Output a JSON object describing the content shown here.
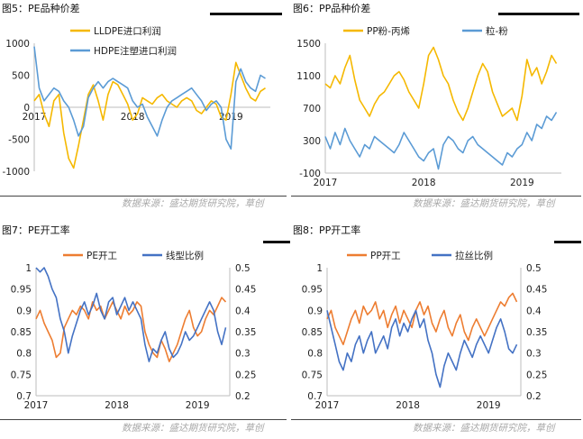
{
  "source_text": "数据来源：盛达期货研究院，草创",
  "colors": {
    "orange": "#f5b800",
    "blue": "#5b9bd5",
    "orange2": "#ed7d31",
    "blue2": "#4472c4",
    "axis": "#bdbdbd"
  },
  "chart_data": [
    {
      "id": "fig5",
      "caption": "图5：PE品种价差",
      "type": "line",
      "x_ticks": [
        "2017",
        "2018",
        "2019"
      ],
      "y_left": {
        "min": -1000,
        "max": 1000,
        "ticks": [
          "1000",
          "500",
          "0",
          "-500",
          "-1000"
        ]
      },
      "series": [
        {
          "name": "LLDPE进口利润",
          "color": "#f5b800",
          "x": [
            2017.0,
            2017.05,
            2017.1,
            2017.15,
            2017.2,
            2017.25,
            2017.3,
            2017.35,
            2017.4,
            2017.45,
            2017.5,
            2017.55,
            2017.6,
            2017.65,
            2017.7,
            2017.75,
            2017.8,
            2017.85,
            2017.9,
            2017.95,
            2018.0,
            2018.05,
            2018.1,
            2018.15,
            2018.2,
            2018.25,
            2018.3,
            2018.35,
            2018.4,
            2018.45,
            2018.5,
            2018.55,
            2018.6,
            2018.65,
            2018.7,
            2018.75,
            2018.8,
            2018.85,
            2018.9,
            2018.95,
            2019.0,
            2019.05,
            2019.1,
            2019.15,
            2019.2,
            2019.25,
            2019.3,
            2019.35
          ],
          "values": [
            100,
            200,
            -100,
            -300,
            100,
            200,
            -400,
            -800,
            -950,
            -600,
            -200,
            200,
            350,
            100,
            -200,
            200,
            400,
            350,
            200,
            50,
            -200,
            -100,
            150,
            100,
            50,
            150,
            200,
            100,
            50,
            0,
            100,
            150,
            100,
            -50,
            -100,
            0,
            100,
            50,
            -150,
            -200,
            200,
            700,
            500,
            300,
            150,
            100,
            250,
            300
          ]
        },
        {
          "name": "HDPE注塑进口利润",
          "color": "#5b9bd5",
          "x": [
            2017.0,
            2017.05,
            2017.1,
            2017.15,
            2017.2,
            2017.25,
            2017.3,
            2017.35,
            2017.4,
            2017.45,
            2017.5,
            2017.55,
            2017.6,
            2017.65,
            2017.7,
            2017.75,
            2017.8,
            2017.85,
            2017.9,
            2017.95,
            2018.0,
            2018.05,
            2018.1,
            2018.15,
            2018.2,
            2018.25,
            2018.3,
            2018.35,
            2018.4,
            2018.45,
            2018.5,
            2018.55,
            2018.6,
            2018.65,
            2018.7,
            2018.75,
            2018.8,
            2018.85,
            2018.9,
            2018.95,
            2019.0,
            2019.05,
            2019.1,
            2019.15,
            2019.2,
            2019.25,
            2019.3,
            2019.35
          ],
          "values": [
            950,
            300,
            100,
            200,
            300,
            250,
            100,
            0,
            -200,
            -450,
            -300,
            150,
            300,
            400,
            300,
            400,
            450,
            400,
            350,
            300,
            100,
            0,
            50,
            -150,
            -300,
            -450,
            -200,
            0,
            100,
            150,
            200,
            250,
            300,
            200,
            100,
            -50,
            50,
            100,
            0,
            -500,
            -650,
            400,
            600,
            400,
            300,
            250,
            500,
            450
          ]
        }
      ]
    },
    {
      "id": "fig6",
      "caption": "图6：PP品种价差",
      "type": "line",
      "x_ticks": [
        "2017",
        "2018",
        "2019"
      ],
      "y_left": {
        "min": -100,
        "max": 1500,
        "ticks": [
          "1500",
          "1100",
          "700",
          "300",
          "-100"
        ]
      },
      "series": [
        {
          "name": "PP粉-丙烯",
          "color": "#f5b800",
          "x": [
            2017.0,
            2017.05,
            2017.1,
            2017.15,
            2017.2,
            2017.25,
            2017.3,
            2017.35,
            2017.4,
            2017.45,
            2017.5,
            2017.55,
            2017.6,
            2017.65,
            2017.7,
            2017.75,
            2017.8,
            2017.85,
            2017.9,
            2017.95,
            2018.0,
            2018.05,
            2018.1,
            2018.15,
            2018.2,
            2018.25,
            2018.3,
            2018.35,
            2018.4,
            2018.45,
            2018.5,
            2018.55,
            2018.6,
            2018.65,
            2018.7,
            2018.75,
            2018.8,
            2018.85,
            2018.9,
            2018.95,
            2019.0,
            2019.05,
            2019.1,
            2019.15,
            2019.2,
            2019.25,
            2019.3,
            2019.35
          ],
          "values": [
            1000,
            950,
            1100,
            1000,
            1200,
            1350,
            1050,
            800,
            700,
            600,
            750,
            850,
            900,
            1000,
            1100,
            1150,
            1050,
            900,
            800,
            700,
            1000,
            1350,
            1450,
            1300,
            1100,
            1000,
            800,
            650,
            550,
            700,
            900,
            1100,
            1250,
            1150,
            900,
            750,
            600,
            650,
            700,
            550,
            850,
            1300,
            1100,
            1200,
            1000,
            1150,
            1350,
            1250
          ]
        },
        {
          "name": "粒-粉",
          "color": "#5b9bd5",
          "x": [
            2017.0,
            2017.05,
            2017.1,
            2017.15,
            2017.2,
            2017.25,
            2017.3,
            2017.35,
            2017.4,
            2017.45,
            2017.5,
            2017.55,
            2017.6,
            2017.65,
            2017.7,
            2017.75,
            2017.8,
            2017.85,
            2017.9,
            2017.95,
            2018.0,
            2018.05,
            2018.1,
            2018.15,
            2018.2,
            2018.25,
            2018.3,
            2018.35,
            2018.4,
            2018.45,
            2018.5,
            2018.55,
            2018.6,
            2018.65,
            2018.7,
            2018.75,
            2018.8,
            2018.85,
            2018.9,
            2018.95,
            2019.0,
            2019.05,
            2019.1,
            2019.15,
            2019.2,
            2019.25,
            2019.3,
            2019.35
          ],
          "values": [
            350,
            200,
            400,
            250,
            450,
            300,
            200,
            100,
            250,
            200,
            350,
            300,
            250,
            200,
            150,
            250,
            400,
            300,
            200,
            100,
            50,
            150,
            200,
            -50,
            250,
            350,
            300,
            200,
            150,
            300,
            350,
            250,
            200,
            150,
            100,
            50,
            0,
            150,
            100,
            200,
            250,
            400,
            300,
            500,
            450,
            600,
            550,
            650
          ]
        }
      ]
    },
    {
      "id": "fig7",
      "caption": "图7：PE开工率",
      "type": "line",
      "x_ticks": [
        "2017",
        "2018",
        "2019"
      ],
      "y_left": {
        "min": 0.7,
        "max": 1.0,
        "ticks": [
          "1",
          "0.95",
          "0.9",
          "0.85",
          "0.8",
          "0.75",
          "0.7"
        ]
      },
      "y_right": {
        "min": 0.2,
        "max": 0.5,
        "ticks": [
          "0.5",
          "0.45",
          "0.4",
          "0.35",
          "0.3",
          "0.25",
          "0.2"
        ]
      },
      "series": [
        {
          "name": "PE开工",
          "color": "#ed7d31",
          "axis": "left",
          "x": [
            2017.0,
            2017.05,
            2017.1,
            2017.15,
            2017.2,
            2017.25,
            2017.3,
            2017.35,
            2017.4,
            2017.45,
            2017.5,
            2017.55,
            2017.6,
            2017.65,
            2017.7,
            2017.75,
            2017.8,
            2017.85,
            2017.9,
            2017.95,
            2018.0,
            2018.05,
            2018.1,
            2018.15,
            2018.2,
            2018.25,
            2018.3,
            2018.35,
            2018.4,
            2018.45,
            2018.5,
            2018.55,
            2018.6,
            2018.65,
            2018.7,
            2018.75,
            2018.8,
            2018.85,
            2018.9,
            2018.95,
            2019.0,
            2019.05,
            2019.1,
            2019.15,
            2019.2,
            2019.25,
            2019.3,
            2019.35
          ],
          "values": [
            0.88,
            0.9,
            0.87,
            0.85,
            0.83,
            0.79,
            0.8,
            0.86,
            0.88,
            0.9,
            0.89,
            0.91,
            0.9,
            0.88,
            0.92,
            0.9,
            0.91,
            0.88,
            0.9,
            0.92,
            0.9,
            0.88,
            0.91,
            0.89,
            0.9,
            0.92,
            0.91,
            0.85,
            0.82,
            0.8,
            0.79,
            0.83,
            0.81,
            0.78,
            0.8,
            0.82,
            0.85,
            0.88,
            0.9,
            0.86,
            0.84,
            0.85,
            0.88,
            0.9,
            0.89,
            0.91,
            0.93,
            0.92
          ]
        },
        {
          "name": "线型比例",
          "color": "#4472c4",
          "axis": "right",
          "x": [
            2017.0,
            2017.05,
            2017.1,
            2017.15,
            2017.2,
            2017.25,
            2017.3,
            2017.35,
            2017.4,
            2017.45,
            2017.5,
            2017.55,
            2017.6,
            2017.65,
            2017.7,
            2017.75,
            2017.8,
            2017.85,
            2017.9,
            2017.95,
            2018.0,
            2018.05,
            2018.1,
            2018.15,
            2018.2,
            2018.25,
            2018.3,
            2018.35,
            2018.4,
            2018.45,
            2018.5,
            2018.55,
            2018.6,
            2018.65,
            2018.7,
            2018.75,
            2018.8,
            2018.85,
            2018.9,
            2018.95,
            2019.0,
            2019.05,
            2019.1,
            2019.15,
            2019.2,
            2019.25,
            2019.3,
            2019.35
          ],
          "values": [
            0.5,
            0.49,
            0.5,
            0.48,
            0.45,
            0.43,
            0.38,
            0.35,
            0.3,
            0.34,
            0.37,
            0.4,
            0.42,
            0.39,
            0.41,
            0.44,
            0.4,
            0.38,
            0.42,
            0.43,
            0.39,
            0.41,
            0.43,
            0.4,
            0.42,
            0.4,
            0.38,
            0.32,
            0.28,
            0.31,
            0.3,
            0.33,
            0.35,
            0.31,
            0.29,
            0.3,
            0.32,
            0.35,
            0.33,
            0.34,
            0.36,
            0.38,
            0.4,
            0.42,
            0.4,
            0.35,
            0.32,
            0.36
          ]
        }
      ]
    },
    {
      "id": "fig8",
      "caption": "图8：PP开工率",
      "type": "line",
      "x_ticks": [
        "2017",
        "2018",
        "2019"
      ],
      "y_left": {
        "min": 0.7,
        "max": 1.0,
        "ticks": [
          "1",
          "0.95",
          "0.9",
          "0.85",
          "0.8",
          "0.75",
          "0.7"
        ]
      },
      "y_right": {
        "min": 0.2,
        "max": 0.5,
        "ticks": [
          "0.5",
          "0.45",
          "0.4",
          "0.35",
          "0.3",
          "0.25",
          "0.2"
        ]
      },
      "series": [
        {
          "name": "PP开工",
          "color": "#ed7d31",
          "axis": "left",
          "x": [
            2017.0,
            2017.05,
            2017.1,
            2017.15,
            2017.2,
            2017.25,
            2017.3,
            2017.35,
            2017.4,
            2017.45,
            2017.5,
            2017.55,
            2017.6,
            2017.65,
            2017.7,
            2017.75,
            2017.8,
            2017.85,
            2017.9,
            2017.95,
            2018.0,
            2018.05,
            2018.1,
            2018.15,
            2018.2,
            2018.25,
            2018.3,
            2018.35,
            2018.4,
            2018.45,
            2018.5,
            2018.55,
            2018.6,
            2018.65,
            2018.7,
            2018.75,
            2018.8,
            2018.85,
            2018.9,
            2018.95,
            2019.0,
            2019.05,
            2019.1,
            2019.15,
            2019.2,
            2019.25,
            2019.3,
            2019.35
          ],
          "values": [
            0.88,
            0.9,
            0.86,
            0.84,
            0.82,
            0.85,
            0.88,
            0.9,
            0.87,
            0.91,
            0.89,
            0.9,
            0.92,
            0.88,
            0.9,
            0.86,
            0.89,
            0.91,
            0.87,
            0.9,
            0.88,
            0.86,
            0.9,
            0.92,
            0.89,
            0.91,
            0.87,
            0.85,
            0.88,
            0.9,
            0.86,
            0.84,
            0.87,
            0.89,
            0.85,
            0.83,
            0.86,
            0.88,
            0.86,
            0.84,
            0.86,
            0.88,
            0.9,
            0.92,
            0.91,
            0.93,
            0.94,
            0.92
          ]
        },
        {
          "name": "拉丝比例",
          "color": "#4472c4",
          "axis": "right",
          "x": [
            2017.0,
            2017.05,
            2017.1,
            2017.15,
            2017.2,
            2017.25,
            2017.3,
            2017.35,
            2017.4,
            2017.45,
            2017.5,
            2017.55,
            2017.6,
            2017.65,
            2017.7,
            2017.75,
            2017.8,
            2017.85,
            2017.9,
            2017.95,
            2018.0,
            2018.05,
            2018.1,
            2018.15,
            2018.2,
            2018.25,
            2018.3,
            2018.35,
            2018.4,
            2018.45,
            2018.5,
            2018.55,
            2018.6,
            2018.65,
            2018.7,
            2018.75,
            2018.8,
            2018.85,
            2018.9,
            2018.95,
            2019.0,
            2019.05,
            2019.1,
            2019.15,
            2019.2,
            2019.25,
            2019.3,
            2019.35
          ],
          "values": [
            0.4,
            0.36,
            0.32,
            0.28,
            0.26,
            0.3,
            0.28,
            0.32,
            0.34,
            0.3,
            0.33,
            0.35,
            0.3,
            0.32,
            0.34,
            0.31,
            0.36,
            0.38,
            0.34,
            0.37,
            0.35,
            0.38,
            0.4,
            0.36,
            0.38,
            0.33,
            0.3,
            0.25,
            0.22,
            0.27,
            0.3,
            0.28,
            0.26,
            0.3,
            0.33,
            0.31,
            0.29,
            0.32,
            0.34,
            0.32,
            0.3,
            0.33,
            0.36,
            0.38,
            0.35,
            0.31,
            0.3,
            0.32
          ]
        }
      ]
    }
  ]
}
